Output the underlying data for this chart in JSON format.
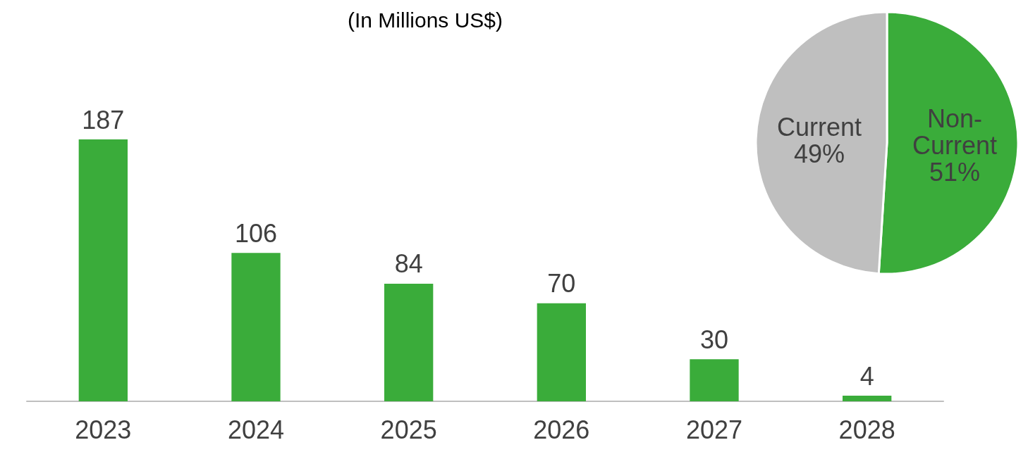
{
  "chart_data": [
    {
      "type": "bar",
      "title": "(In Millions US$)",
      "categories": [
        "2023",
        "2024",
        "2025",
        "2026",
        "2027",
        "2028"
      ],
      "values": [
        187,
        106,
        84,
        70,
        30,
        4
      ],
      "color": "#3aac3a",
      "data_labels": true
    },
    {
      "type": "pie",
      "categories": [
        "Non-Current",
        "Current"
      ],
      "values": [
        51,
        49
      ],
      "colors": [
        "#3aac3a",
        "#bfbfbf"
      ],
      "value_labels": [
        "51%",
        "49%"
      ]
    }
  ]
}
